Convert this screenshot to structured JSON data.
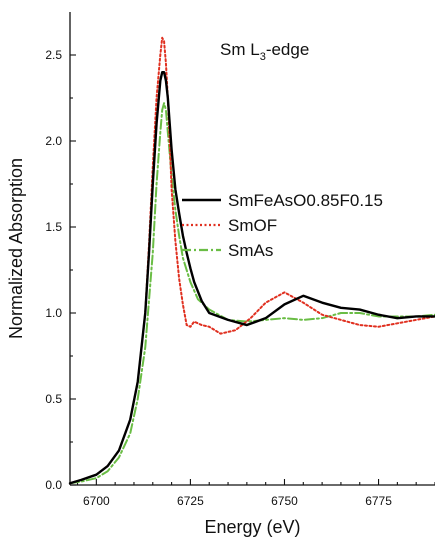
{
  "chart_data": {
    "type": "line",
    "title": "",
    "annotation": {
      "main": "Sm L",
      "subscript": "3",
      "suffix": "-edge"
    },
    "xlabel": "Energy (eV)",
    "ylabel": "Normalized Absorption",
    "xlim": [
      6693,
      6790
    ],
    "ylim": [
      0.0,
      2.75
    ],
    "x_ticks": [
      6700,
      6725,
      6750,
      6775
    ],
    "y_ticks": [
      0.0,
      0.5,
      1.0,
      1.5,
      2.0,
      2.5
    ],
    "x_tick_labels": [
      "6700",
      "6725",
      "6750",
      "6775"
    ],
    "y_tick_labels": [
      "0.0",
      "0.5",
      "1.0",
      "1.5",
      "2.0",
      "2.5"
    ],
    "grid": false,
    "legend": {
      "placement": "right"
    },
    "series": [
      {
        "name": "SmFeAsO0.85F0.15",
        "color": "#000000",
        "style": "solid",
        "x": [
          6693,
          6696,
          6700,
          6703,
          6706,
          6709,
          6711,
          6713,
          6714,
          6715,
          6716,
          6717,
          6717.5,
          6718,
          6718.5,
          6719,
          6719.5,
          6720,
          6721,
          6722,
          6723,
          6724,
          6725,
          6726,
          6728,
          6730,
          6735,
          6740,
          6745,
          6750,
          6755,
          6760,
          6765,
          6770,
          6775,
          6780,
          6785,
          6790
        ],
        "y": [
          0.01,
          0.03,
          0.06,
          0.11,
          0.2,
          0.38,
          0.6,
          1.0,
          1.35,
          1.75,
          2.1,
          2.35,
          2.4,
          2.4,
          2.35,
          2.25,
          2.1,
          1.95,
          1.72,
          1.58,
          1.45,
          1.35,
          1.26,
          1.18,
          1.07,
          1.0,
          0.96,
          0.93,
          0.97,
          1.05,
          1.1,
          1.06,
          1.03,
          1.02,
          0.99,
          0.97,
          0.98,
          0.98
        ]
      },
      {
        "name": "SmOF",
        "color": "#e03020",
        "style": "dotted",
        "x": [
          6693,
          6696,
          6700,
          6703,
          6706,
          6709,
          6711,
          6713,
          6714,
          6715,
          6716,
          6717,
          6717.5,
          6718,
          6718.5,
          6719,
          6719.5,
          6720,
          6721,
          6722,
          6723,
          6724,
          6725,
          6726,
          6728,
          6730,
          6733,
          6737,
          6741,
          6745,
          6750,
          6755,
          6760,
          6765,
          6770,
          6775,
          6780,
          6785,
          6790
        ],
        "y": [
          0.01,
          0.03,
          0.06,
          0.11,
          0.2,
          0.38,
          0.6,
          1.0,
          1.4,
          1.85,
          2.25,
          2.5,
          2.6,
          2.58,
          2.45,
          2.25,
          2.0,
          1.72,
          1.42,
          1.2,
          1.05,
          0.93,
          0.92,
          0.95,
          0.93,
          0.92,
          0.88,
          0.9,
          0.97,
          1.06,
          1.12,
          1.06,
          0.99,
          0.96,
          0.93,
          0.92,
          0.94,
          0.96,
          0.98
        ]
      },
      {
        "name": "SmAs",
        "color": "#6abd45",
        "style": "dashdot",
        "x": [
          6693,
          6696,
          6700,
          6703,
          6706,
          6709,
          6711,
          6713,
          6715,
          6716,
          6717,
          6717.5,
          6718,
          6718.5,
          6719,
          6720,
          6721,
          6722,
          6723,
          6725,
          6727,
          6730,
          6735,
          6740,
          6745,
          6750,
          6755,
          6760,
          6765,
          6770,
          6775,
          6780,
          6785,
          6790
        ],
        "y": [
          0.01,
          0.02,
          0.04,
          0.08,
          0.16,
          0.3,
          0.5,
          0.8,
          1.35,
          1.75,
          2.05,
          2.18,
          2.22,
          2.18,
          2.05,
          1.8,
          1.6,
          1.45,
          1.32,
          1.18,
          1.08,
          1.02,
          0.96,
          0.95,
          0.96,
          0.97,
          0.96,
          0.97,
          1.0,
          1.0,
          0.98,
          0.98,
          0.98,
          0.99
        ]
      }
    ]
  }
}
